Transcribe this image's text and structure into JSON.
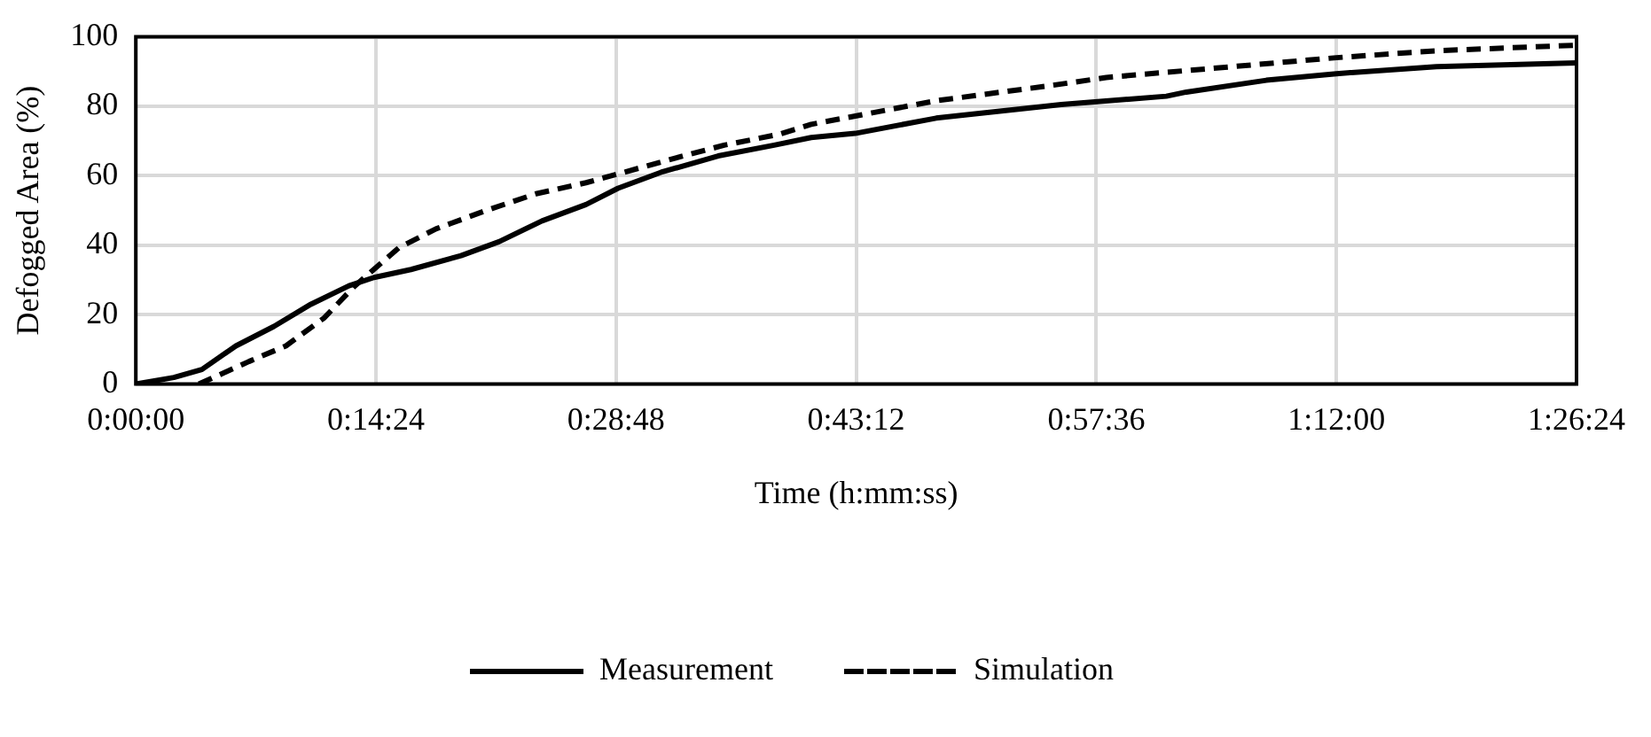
{
  "chart_data": {
    "type": "line",
    "xlabel": "Time (h:mm:ss)",
    "ylabel": "Defogged Area (%)",
    "xlim": [
      0,
      1.44
    ],
    "xticks": [
      {
        "value": 0,
        "label": "0:00:00"
      },
      {
        "value": 0.24,
        "label": "0:14:24"
      },
      {
        "value": 0.48,
        "label": "0:28:48"
      },
      {
        "value": 0.72,
        "label": "0:43:12"
      },
      {
        "value": 0.96,
        "label": "0:57:36"
      },
      {
        "value": 1.2,
        "label": "1:12:00"
      },
      {
        "value": 1.44,
        "label": "1:26:24"
      }
    ],
    "ylim": [
      0,
      100
    ],
    "yticks": [
      0,
      20,
      40,
      60,
      80,
      100
    ],
    "grid": true,
    "legend": "bottom",
    "marker": "none",
    "series": [
      {
        "name": "Measurement",
        "color": "#000000",
        "line_style": "solid",
        "x": [
          0,
          0.038,
          0.066,
          0.1,
          0.138,
          0.175,
          0.213,
          0.238,
          0.275,
          0.325,
          0.363,
          0.406,
          0.45,
          0.482,
          0.525,
          0.582,
          0.638,
          0.675,
          0.719,
          0.8,
          0.925,
          1.03,
          1.05,
          1.13,
          1.2,
          1.3,
          1.44
        ],
        "values": [
          0,
          1.9,
          4.2,
          11,
          16.6,
          23,
          28.3,
          30.7,
          33,
          37,
          41,
          47,
          51.7,
          56.4,
          61,
          65.7,
          68.8,
          71,
          72.2,
          76.6,
          80.5,
          82.9,
          84.1,
          87.5,
          89.4,
          91.4,
          92.5
        ]
      },
      {
        "name": "Simulation",
        "color": "#000000",
        "line_style": "dashed",
        "x": [
          0.063,
          0.113,
          0.15,
          0.188,
          0.219,
          0.263,
          0.3,
          0.35,
          0.4,
          0.45,
          0.488,
          0.538,
          0.588,
          0.644,
          0.675,
          0.8,
          0.915,
          0.97,
          1.2,
          1.3,
          1.44
        ],
        "values": [
          0,
          6.5,
          11,
          19,
          28.3,
          39.3,
          44.7,
          50,
          54.8,
          58,
          61,
          65,
          68.8,
          72,
          74.8,
          81.6,
          86,
          88.3,
          94,
          96,
          97.6
        ]
      }
    ]
  }
}
